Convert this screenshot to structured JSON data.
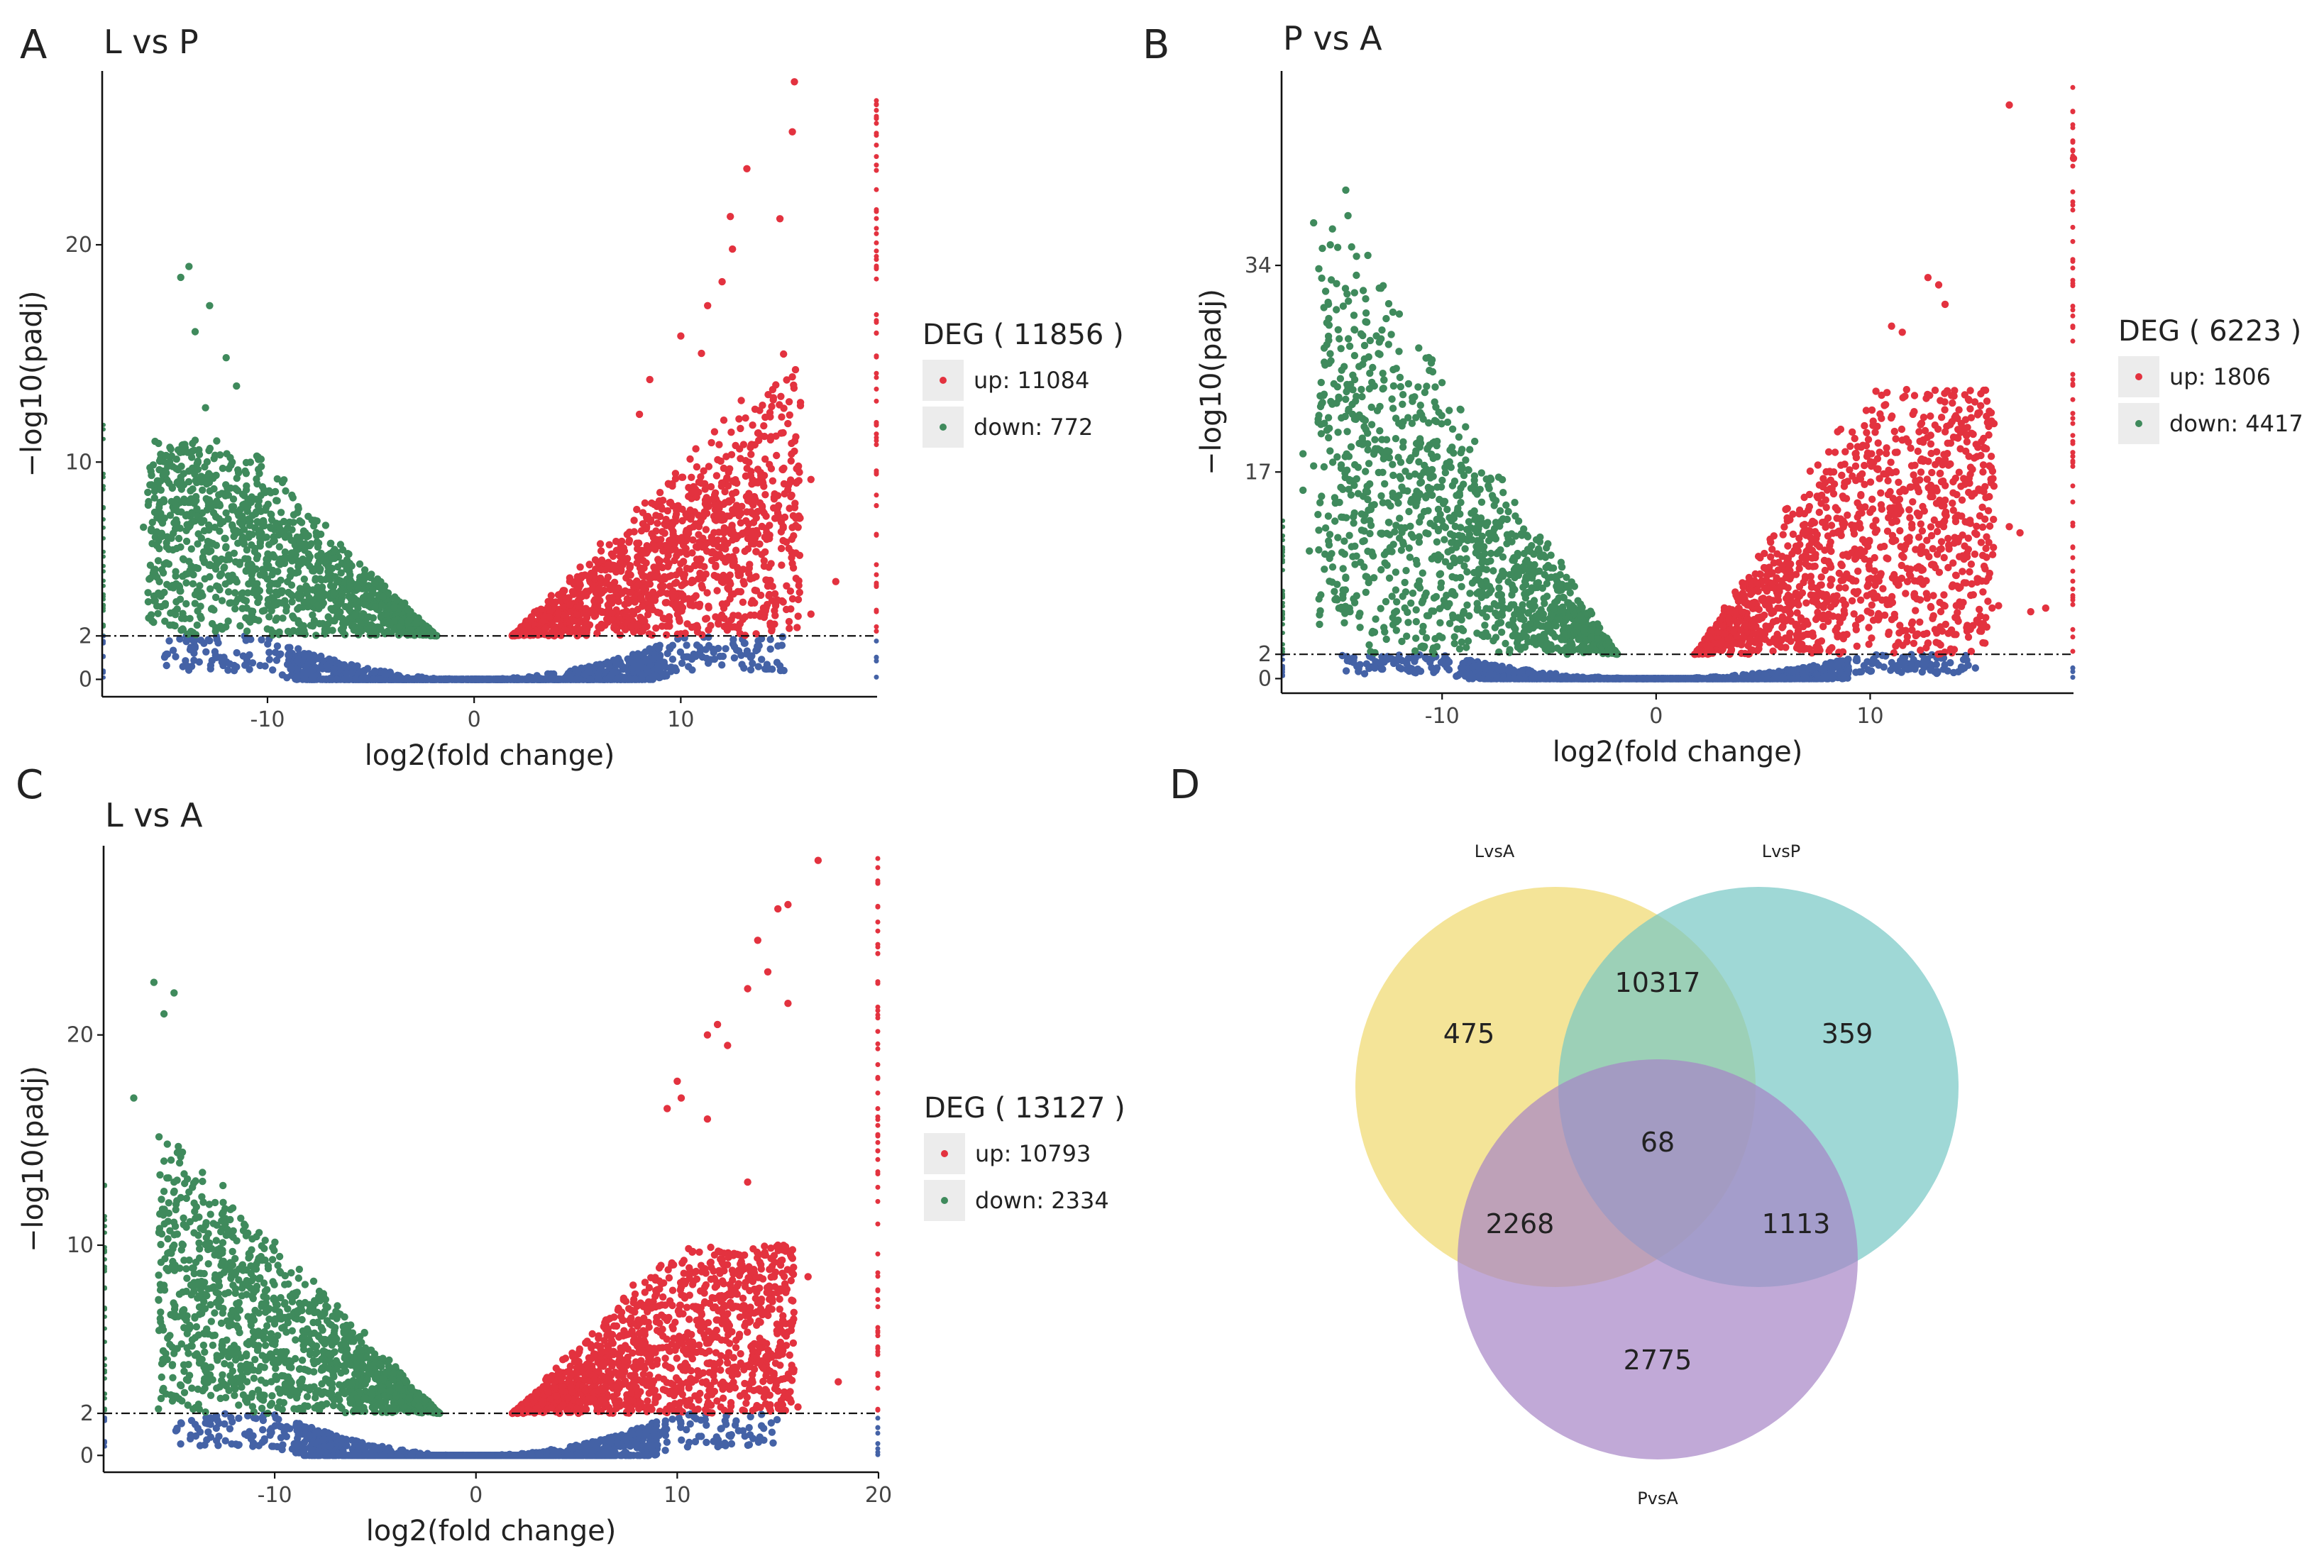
{
  "colors": {
    "up": "#e3323f",
    "down": "#3f8a5c",
    "ns": "#4462a6",
    "venn_lvsa": "#f0d96c",
    "venn_lvsp": "#76c8c4",
    "venn_pvsa": "#a784c6",
    "legend_bg": "#ececec"
  },
  "chart_data": [
    {
      "type": "scatter",
      "panel_letter": "A",
      "title": "L vs P",
      "xlabel": "log2(fold change)",
      "ylabel": "−log10(padj)",
      "xlim": [
        -18,
        19.5
      ],
      "ylim": [
        -0.8,
        28
      ],
      "xticks": [
        -10,
        0,
        10
      ],
      "xtick_labels": [
        "-10",
        "0",
        "10"
      ],
      "yticks": [
        0,
        2,
        10,
        20
      ],
      "ytick_labels": [
        "0",
        "2",
        "10",
        "20"
      ],
      "threshold": 2,
      "legend_title": "DEG ( 11856 )",
      "legend_entries": [
        "up: 11084",
        "down: 772"
      ],
      "max_cap": 28,
      "cloud": {
        "v_slope": 1.0,
        "green_top": 11,
        "red_top": 16,
        "width_left": 3.0,
        "width_right": 3.2,
        "seed": 11
      },
      "up_points": [
        [
          15.5,
          27.5
        ],
        [
          15.4,
          25.2
        ],
        [
          13.2,
          23.5
        ],
        [
          14.8,
          21.2
        ],
        [
          12.4,
          21.3
        ],
        [
          12.5,
          19.8
        ],
        [
          12.0,
          18.3
        ],
        [
          11.3,
          17.2
        ],
        [
          11.0,
          15.0
        ],
        [
          10.0,
          15.8
        ],
        [
          8.5,
          13.8
        ],
        [
          8.0,
          12.2
        ],
        [
          15.5,
          10.5
        ],
        [
          15.0,
          9.0
        ],
        [
          16.3,
          9.2
        ],
        [
          17.5,
          4.5
        ],
        [
          16.3,
          3.0
        ],
        [
          12.5,
          7.8
        ]
      ],
      "down_points": [
        [
          -13.8,
          19.0
        ],
        [
          -14.2,
          18.5
        ],
        [
          -12.8,
          17.2
        ],
        [
          -13.5,
          16.0
        ],
        [
          -12.0,
          14.8
        ],
        [
          -11.5,
          13.5
        ],
        [
          -13.0,
          12.5
        ],
        [
          -13.5,
          11.0
        ],
        [
          -10.3,
          9.8
        ],
        [
          -12.5,
          7.5
        ],
        [
          -13.2,
          6.5
        ],
        [
          -12.0,
          5.5
        ],
        [
          -15.5,
          5.0
        ],
        [
          -16.0,
          7.0
        ],
        [
          -15.0,
          4.0
        ],
        [
          -10.5,
          9.0
        ],
        [
          -11.8,
          10.2
        ],
        [
          -14.0,
          2.8
        ]
      ]
    },
    {
      "type": "scatter",
      "panel_letter": "B",
      "title": "P vs A",
      "xlabel": "log2(fold change)",
      "ylabel": "−log10(padj)",
      "xlim": [
        -17.5,
        19.5
      ],
      "ylim": [
        -1.2,
        50
      ],
      "xticks": [
        -10,
        0,
        10
      ],
      "xtick_labels": [
        "-10",
        "0",
        "10"
      ],
      "yticks": [
        0,
        2,
        17,
        34
      ],
      "ytick_labels": [
        "0",
        "2",
        "17",
        "34"
      ],
      "threshold": 2,
      "legend_title": "DEG ( 6223 )",
      "legend_entries": [
        "up: 1806",
        "down: 4417"
      ],
      "max_cap": 49,
      "cloud": {
        "v_slope": 2.9,
        "green_top": 40,
        "red_top": 24,
        "width_left": 4.5,
        "width_right": 3.6,
        "seed": 23
      },
      "up_points": [
        [
          16.5,
          47.2
        ],
        [
          19.5,
          42.8
        ],
        [
          12.7,
          33.0
        ],
        [
          13.2,
          32.4
        ],
        [
          11.0,
          29.0
        ],
        [
          13.5,
          30.8
        ],
        [
          11.5,
          28.5
        ],
        [
          12.5,
          21.5
        ],
        [
          14.5,
          20.0
        ],
        [
          15.2,
          19.5
        ],
        [
          17.0,
          12.0
        ],
        [
          16.5,
          12.5
        ],
        [
          14.0,
          8.5
        ],
        [
          18.2,
          5.8
        ],
        [
          16.0,
          6.0
        ],
        [
          17.5,
          5.5
        ],
        [
          13.8,
          4.0
        ]
      ],
      "down_points": [
        [
          -14.5,
          40.2
        ],
        [
          -16.0,
          37.5
        ],
        [
          -15.5,
          21.0
        ],
        [
          -16.0,
          17.5
        ],
        [
          -16.5,
          15.5
        ],
        [
          -15.8,
          13.5
        ],
        [
          -15.2,
          22.8
        ],
        [
          -16.2,
          10.5
        ],
        [
          -15.5,
          9.0
        ],
        [
          -14.3,
          5.5
        ],
        [
          -15.0,
          6.5
        ],
        [
          -16.5,
          18.5
        ],
        [
          -12.0,
          30.0
        ],
        [
          -12.5,
          27.5
        ]
      ]
    },
    {
      "type": "scatter",
      "panel_letter": "C",
      "title": "L vs A",
      "xlabel": "log2(fold change)",
      "ylabel": "−log10(padj)",
      "xlim": [
        -18.5,
        20
      ],
      "ylim": [
        -0.8,
        29
      ],
      "xticks": [
        -10,
        0,
        10,
        20
      ],
      "xtick_labels": [
        "-10",
        "0",
        "10",
        "20"
      ],
      "yticks": [
        0,
        2,
        10,
        20
      ],
      "ytick_labels": [
        "0",
        "2",
        "10",
        "20"
      ],
      "threshold": 2,
      "legend_title": "DEG ( 13127 )",
      "legend_entries": [
        "up: 10793",
        "down: 2334"
      ],
      "max_cap": 28.5,
      "cloud": {
        "v_slope": 1.05,
        "green_top": 19,
        "red_top": 10,
        "width_left": 3.5,
        "width_right": 3.0,
        "seed": 37
      },
      "up_points": [
        [
          17.0,
          28.3
        ],
        [
          15.0,
          26.0
        ],
        [
          15.5,
          26.2
        ],
        [
          14.0,
          24.5
        ],
        [
          14.5,
          23.0
        ],
        [
          13.5,
          22.2
        ],
        [
          15.5,
          21.5
        ],
        [
          11.5,
          20.0
        ],
        [
          12.5,
          19.5
        ],
        [
          12.0,
          20.5
        ],
        [
          10.0,
          17.8
        ],
        [
          10.2,
          17.0
        ],
        [
          9.5,
          16.5
        ],
        [
          11.5,
          16.0
        ],
        [
          13.5,
          13.0
        ],
        [
          15.0,
          10.0
        ],
        [
          16.5,
          8.5
        ],
        [
          18.0,
          3.5
        ],
        [
          15.5,
          2.8
        ],
        [
          16.0,
          2.3
        ]
      ],
      "down_points": [
        [
          -16.0,
          22.5
        ],
        [
          -15.0,
          22.0
        ],
        [
          -15.5,
          21.0
        ],
        [
          -17.0,
          17.0
        ],
        [
          -15.5,
          14.0
        ],
        [
          -15.0,
          13.0
        ],
        [
          -14.0,
          12.0
        ],
        [
          -15.0,
          10.0
        ],
        [
          -14.5,
          4.0
        ],
        [
          -13.5,
          3.5
        ]
      ]
    },
    {
      "type": "venn",
      "panel_letter": "D",
      "sets": [
        {
          "name": "LvsA",
          "only": 475
        },
        {
          "name": "LvsP",
          "only": 359
        },
        {
          "name": "PvsA",
          "only": 2775
        }
      ],
      "intersections": {
        "LvsA_LvsP": 10317,
        "LvsA_PvsA": 2268,
        "LvsP_PvsA": 1113,
        "all": 68
      }
    }
  ]
}
